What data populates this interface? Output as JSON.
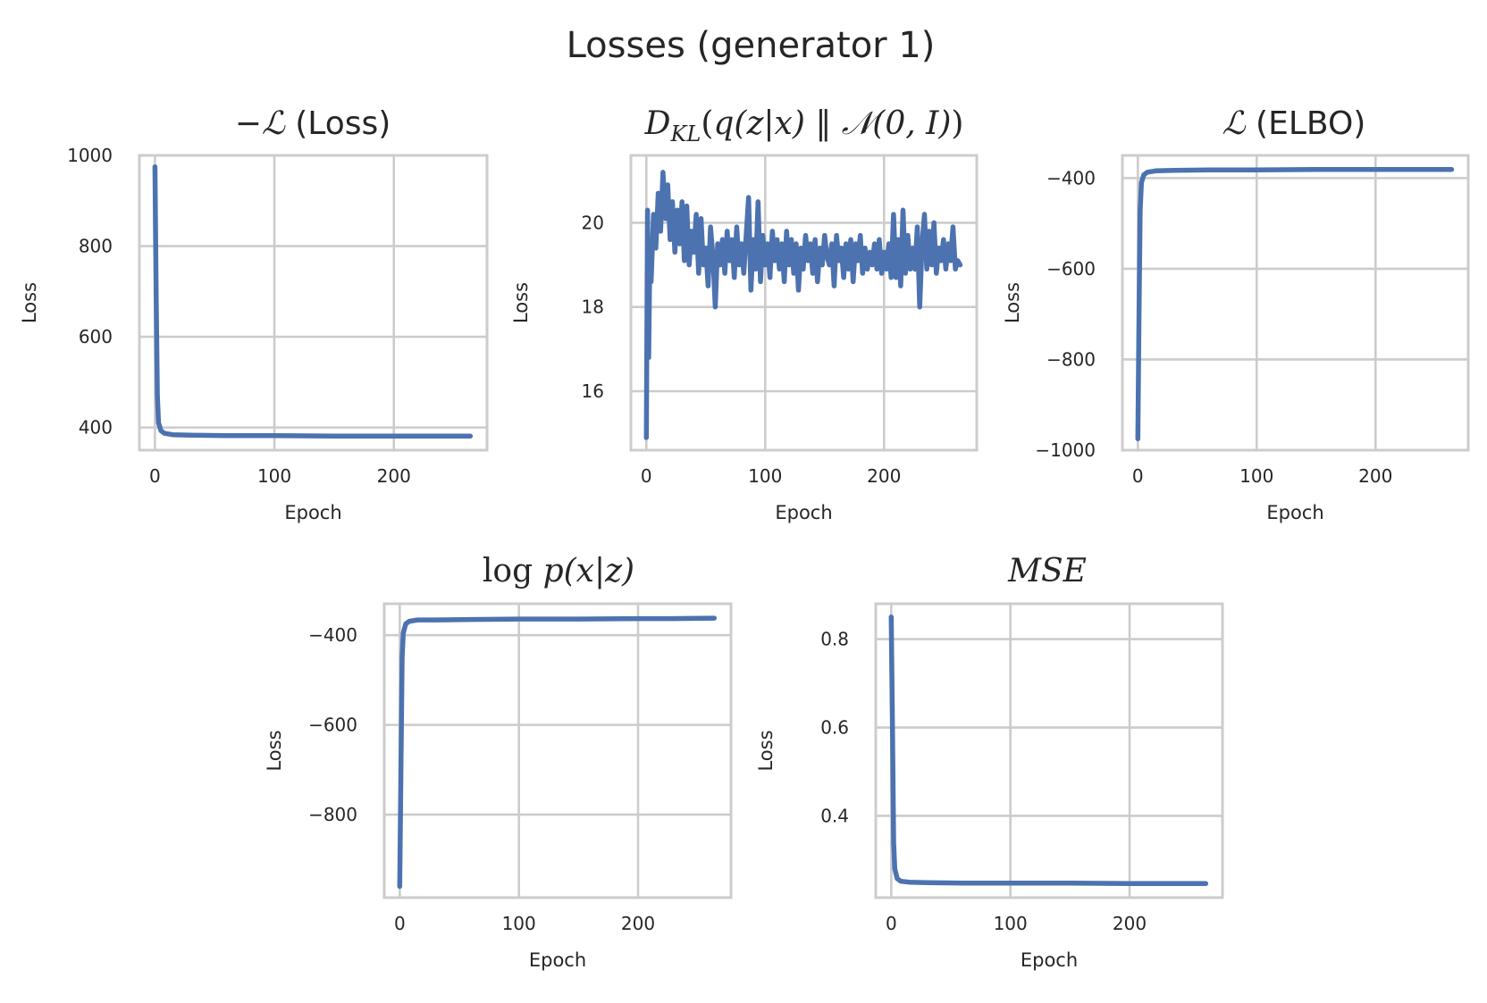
{
  "figure_title": "Losses (generator 1)",
  "colors": {
    "series": "#4c72b0",
    "grid": "#cccccc",
    "text": "#262626"
  },
  "chart_data": [
    {
      "type": "line",
      "title": "−ℒ (Loss)",
      "xlabel": "Epoch",
      "ylabel": "Loss",
      "xlim": [
        -13,
        278
      ],
      "ylim": [
        350,
        1000
      ],
      "xticks": [
        0,
        100,
        200
      ],
      "yticks": [
        400,
        600,
        800,
        1000
      ],
      "grid": true,
      "series": [
        {
          "values": [
            [
              0,
              975
            ],
            [
              1,
              700
            ],
            [
              2,
              470
            ],
            [
              3,
              410
            ],
            [
              5,
              393
            ],
            [
              8,
              387
            ],
            [
              15,
              384
            ],
            [
              30,
              383
            ],
            [
              60,
              382
            ],
            [
              100,
              382
            ],
            [
              150,
              381
            ],
            [
              200,
              381
            ],
            [
              230,
              381
            ],
            [
              264,
              381
            ]
          ]
        }
      ]
    },
    {
      "type": "line",
      "title": "D_KL(q(z|x) ‖ 𝒩(0, I))",
      "xlabel": "Epoch",
      "ylabel": "Loss",
      "xlim": [
        -13,
        278
      ],
      "ylim": [
        14.6,
        21.6
      ],
      "xticks": [
        0,
        100,
        200
      ],
      "yticks": [
        16,
        18,
        20
      ],
      "grid": true,
      "series": [
        {
          "values": [
            [
              0,
              14.9
            ],
            [
              1,
              20.3
            ],
            [
              2,
              16.8
            ],
            [
              3,
              19.5
            ],
            [
              4,
              18.6
            ],
            [
              6,
              20.2
            ],
            [
              8,
              19.4
            ],
            [
              10,
              20.7
            ],
            [
              12,
              19.8
            ],
            [
              14,
              21.2
            ],
            [
              16,
              20.1
            ],
            [
              18,
              20.9
            ],
            [
              20,
              19.6
            ],
            [
              22,
              20.5
            ],
            [
              24,
              19.3
            ],
            [
              26,
              20.3
            ],
            [
              28,
              19.5
            ],
            [
              30,
              20.5
            ],
            [
              32,
              19.1
            ],
            [
              34,
              20.4
            ],
            [
              36,
              19.0
            ],
            [
              38,
              19.8
            ],
            [
              40,
              19.3
            ],
            [
              42,
              20.2
            ],
            [
              44,
              18.8
            ],
            [
              46,
              20.1
            ],
            [
              48,
              19.0
            ],
            [
              50,
              19.4
            ],
            [
              52,
              18.5
            ],
            [
              54,
              19.9
            ],
            [
              56,
              19.2
            ],
            [
              58,
              18.0
            ],
            [
              60,
              19.5
            ],
            [
              62,
              19.0
            ],
            [
              64,
              19.6
            ],
            [
              66,
              18.8
            ],
            [
              68,
              19.8
            ],
            [
              70,
              19.1
            ],
            [
              72,
              19.6
            ],
            [
              74,
              18.7
            ],
            [
              76,
              19.9
            ],
            [
              78,
              19.0
            ],
            [
              80,
              19.5
            ],
            [
              82,
              18.8
            ],
            [
              84,
              19.7
            ],
            [
              86,
              20.6
            ],
            [
              88,
              18.4
            ],
            [
              90,
              19.6
            ],
            [
              92,
              18.9
            ],
            [
              94,
              20.5
            ],
            [
              96,
              18.6
            ],
            [
              98,
              19.7
            ],
            [
              100,
              19.0
            ],
            [
              102,
              19.5
            ],
            [
              104,
              18.7
            ],
            [
              106,
              19.8
            ],
            [
              108,
              19.1
            ],
            [
              110,
              19.6
            ],
            [
              112,
              18.9
            ],
            [
              114,
              19.5
            ],
            [
              116,
              18.6
            ],
            [
              118,
              19.8
            ],
            [
              120,
              19.0
            ],
            [
              122,
              19.6
            ],
            [
              124,
              18.8
            ],
            [
              126,
              19.5
            ],
            [
              128,
              18.4
            ],
            [
              130,
              19.4
            ],
            [
              132,
              18.9
            ],
            [
              134,
              19.7
            ],
            [
              136,
              19.1
            ],
            [
              138,
              19.5
            ],
            [
              140,
              18.8
            ],
            [
              142,
              19.6
            ],
            [
              144,
              18.6
            ],
            [
              146,
              19.4
            ],
            [
              148,
              19.0
            ],
            [
              150,
              19.7
            ],
            [
              152,
              19.2
            ],
            [
              154,
              19.0
            ],
            [
              156,
              19.5
            ],
            [
              158,
              18.5
            ],
            [
              160,
              19.7
            ],
            [
              162,
              19.1
            ],
            [
              164,
              19.4
            ],
            [
              166,
              18.7
            ],
            [
              168,
              19.5
            ],
            [
              170,
              18.9
            ],
            [
              172,
              19.6
            ],
            [
              174,
              18.6
            ],
            [
              176,
              19.5
            ],
            [
              178,
              19.1
            ],
            [
              180,
              19.7
            ],
            [
              182,
              18.8
            ],
            [
              184,
              19.4
            ],
            [
              186,
              18.9
            ],
            [
              188,
              19.3
            ],
            [
              190,
              19.0
            ],
            [
              192,
              19.5
            ],
            [
              194,
              18.9
            ],
            [
              196,
              19.6
            ],
            [
              198,
              18.8
            ],
            [
              200,
              19.3
            ],
            [
              202,
              18.9
            ],
            [
              204,
              19.5
            ],
            [
              206,
              18.7
            ],
            [
              208,
              20.2
            ],
            [
              210,
              18.7
            ],
            [
              212,
              19.6
            ],
            [
              214,
              18.5
            ],
            [
              216,
              20.3
            ],
            [
              218,
              18.8
            ],
            [
              220,
              19.7
            ],
            [
              222,
              18.9
            ],
            [
              224,
              19.4
            ],
            [
              226,
              18.9
            ],
            [
              228,
              19.9
            ],
            [
              230,
              18.0
            ],
            [
              232,
              19.5
            ],
            [
              234,
              20.2
            ],
            [
              236,
              18.9
            ],
            [
              238,
              19.8
            ],
            [
              240,
              19.0
            ],
            [
              242,
              20.0
            ],
            [
              244,
              18.8
            ],
            [
              246,
              19.4
            ],
            [
              248,
              19.1
            ],
            [
              250,
              19.6
            ],
            [
              252,
              18.9
            ],
            [
              254,
              19.5
            ],
            [
              256,
              19.1
            ],
            [
              258,
              19.9
            ],
            [
              260,
              18.9
            ],
            [
              262,
              19.1
            ],
            [
              264,
              19.0
            ]
          ]
        }
      ]
    },
    {
      "type": "line",
      "title": "ℒ (ELBO)",
      "xlabel": "Epoch",
      "ylabel": "Loss",
      "xlim": [
        -13,
        278
      ],
      "ylim": [
        -1000,
        -350
      ],
      "xticks": [
        0,
        100,
        200
      ],
      "yticks": [
        -1000,
        -800,
        -600,
        -400
      ],
      "grid": true,
      "series": [
        {
          "values": [
            [
              0,
              -975
            ],
            [
              1,
              -700
            ],
            [
              2,
              -470
            ],
            [
              3,
              -410
            ],
            [
              5,
              -393
            ],
            [
              8,
              -387
            ],
            [
              15,
              -384
            ],
            [
              30,
              -383
            ],
            [
              60,
              -382
            ],
            [
              100,
              -382
            ],
            [
              150,
              -381
            ],
            [
              200,
              -381
            ],
            [
              230,
              -381
            ],
            [
              264,
              -381
            ]
          ]
        }
      ]
    },
    {
      "type": "line",
      "title": "log p(x|z)",
      "xlabel": "Epoch",
      "ylabel": "Loss",
      "xlim": [
        -13,
        278
      ],
      "ylim": [
        -985,
        -330
      ],
      "xticks": [
        0,
        100,
        200
      ],
      "yticks": [
        -800,
        -600,
        -400
      ],
      "grid": true,
      "series": [
        {
          "values": [
            [
              0,
              -960
            ],
            [
              1,
              -690
            ],
            [
              2,
              -450
            ],
            [
              3,
              -395
            ],
            [
              5,
              -375
            ],
            [
              8,
              -369
            ],
            [
              15,
              -366
            ],
            [
              30,
              -366
            ],
            [
              60,
              -365
            ],
            [
              100,
              -364
            ],
            [
              150,
              -364
            ],
            [
              200,
              -363
            ],
            [
              230,
              -363
            ],
            [
              264,
              -362
            ]
          ]
        }
      ]
    },
    {
      "type": "line",
      "title": "MSE",
      "xlabel": "Epoch",
      "ylabel": "Loss",
      "xlim": [
        -13,
        278
      ],
      "ylim": [
        0.215,
        0.88
      ],
      "xticks": [
        0,
        100,
        200
      ],
      "yticks": [
        0.4,
        0.6,
        0.8
      ],
      "grid": true,
      "series": [
        {
          "values": [
            [
              0,
              0.85
            ],
            [
              1,
              0.6
            ],
            [
              2,
              0.34
            ],
            [
              3,
              0.28
            ],
            [
              5,
              0.258
            ],
            [
              8,
              0.252
            ],
            [
              15,
              0.25
            ],
            [
              30,
              0.249
            ],
            [
              60,
              0.248
            ],
            [
              100,
              0.248
            ],
            [
              150,
              0.248
            ],
            [
              200,
              0.247
            ],
            [
              230,
              0.247
            ],
            [
              264,
              0.247
            ]
          ]
        }
      ]
    }
  ]
}
